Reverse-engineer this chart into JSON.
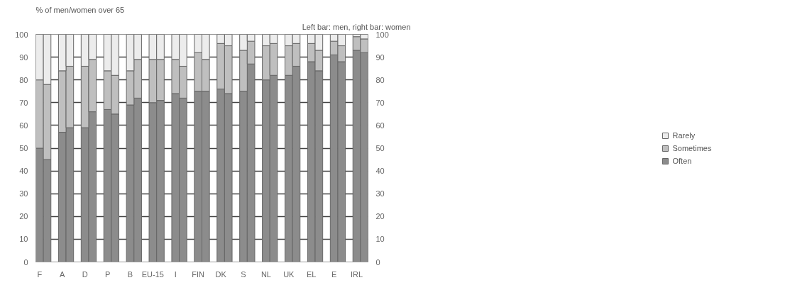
{
  "chart_data": {
    "type": "bar",
    "stacked": true,
    "ylabel": "% of men/women over 65",
    "annotations": [
      "Left bar: men, right bar: women"
    ],
    "categories": [
      "F",
      null,
      "A",
      null,
      "D",
      null,
      "P",
      null,
      "B",
      null,
      "EU-15",
      null,
      "I",
      null,
      "FIN",
      null,
      "DK",
      null,
      "S",
      null,
      "NL",
      null,
      "UK",
      null,
      "EL",
      null,
      "E",
      null,
      "IRL",
      null
    ],
    "series": [
      {
        "name": "Often",
        "color": "#8c8c8c",
        "values": [
          50,
          45,
          57,
          59,
          59,
          66,
          67,
          65,
          69,
          72,
          70,
          71,
          74,
          72,
          75,
          75,
          76,
          74,
          75,
          87,
          80,
          82,
          82,
          86,
          88,
          84,
          91,
          88,
          93,
          92
        ]
      },
      {
        "name": "Sometimes",
        "color": "#bfbfbf",
        "values": [
          30,
          33,
          27,
          27,
          27,
          23,
          17,
          17,
          15,
          17,
          19,
          18,
          15,
          14,
          17,
          14,
          20,
          21,
          18,
          10,
          15,
          14,
          13,
          10,
          8,
          9,
          6,
          7,
          6,
          6
        ]
      },
      {
        "name": "Rarely",
        "color": "#ececec",
        "values": [
          20,
          22,
          16,
          14,
          14,
          11,
          16,
          18,
          16,
          11,
          11,
          11,
          11,
          14,
          8,
          11,
          4,
          5,
          7,
          3,
          5,
          4,
          5,
          4,
          4,
          7,
          3,
          5,
          1,
          2
        ]
      }
    ],
    "ylim": [
      0,
      100
    ],
    "yticks": [
      0,
      10,
      20,
      30,
      40,
      50,
      60,
      70,
      80,
      90,
      100
    ],
    "y2lim": [
      0,
      100
    ],
    "y2ticks": [
      0,
      10,
      20,
      30,
      40,
      50,
      60,
      70,
      80,
      90,
      100
    ],
    "grid": "y",
    "legend": "right"
  }
}
